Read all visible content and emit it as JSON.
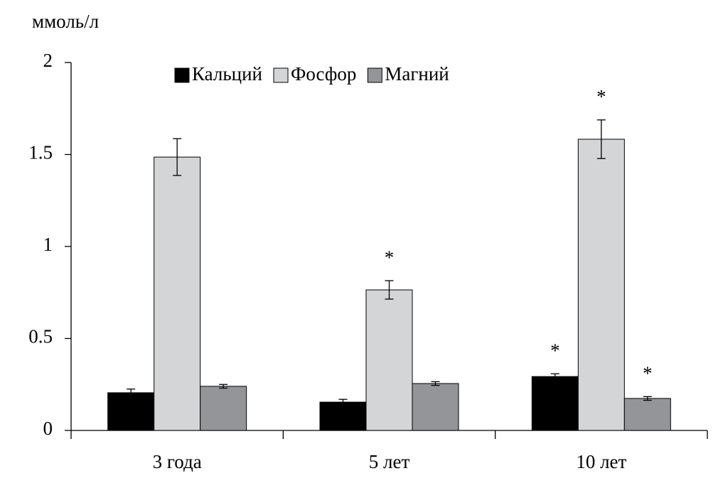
{
  "chart_data": {
    "type": "bar",
    "y_label": "ммоль/л",
    "categories": [
      "3 года",
      "5 лет",
      "10 лет"
    ],
    "series": [
      {
        "name": "Кальций",
        "color": "#000000",
        "values": [
          0.205,
          0.154,
          0.293
        ],
        "errors": [
          0.02,
          0.015,
          0.015
        ],
        "significance": [
          null,
          null,
          "*"
        ]
      },
      {
        "name": "Фосфор",
        "color": "#d4d5d7",
        "values": [
          1.486,
          0.764,
          1.583
        ],
        "errors": [
          0.1,
          0.05,
          0.105
        ],
        "significance": [
          null,
          "*",
          "*"
        ]
      },
      {
        "name": "Магний",
        "color": "#939598",
        "values": [
          0.24,
          0.255,
          0.174
        ],
        "errors": [
          0.01,
          0.01,
          0.01
        ],
        "significance": [
          null,
          null,
          "*"
        ]
      }
    ],
    "ylim": [
      0,
      2
    ],
    "yticks": [
      0,
      0.5,
      1,
      1.5,
      2
    ],
    "grid": false,
    "legend": "top"
  }
}
